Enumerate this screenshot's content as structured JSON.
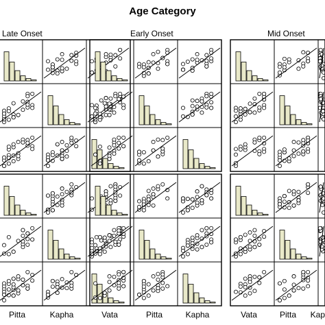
{
  "chart_data": {
    "type": "scatter",
    "title": "Age Category",
    "panel_headers": [
      "Late Onset",
      "Early Onset",
      "Mid Onset"
    ],
    "bottom_labels": [
      "Pitta",
      "Kapha",
      "Vata",
      "Pitta",
      "Kapha",
      "Vata",
      "Pitta",
      "Kapha"
    ],
    "variables": [
      "Vata",
      "Pitta",
      "Kapha"
    ],
    "matrix_layout": "scatterplot matrix per panel; diagonal shows histograms, off-diagonal shows scatter with fit line",
    "colors": {
      "frame": "#000000",
      "hist_fill": "#e9e9c9",
      "point": "#000000"
    }
  }
}
